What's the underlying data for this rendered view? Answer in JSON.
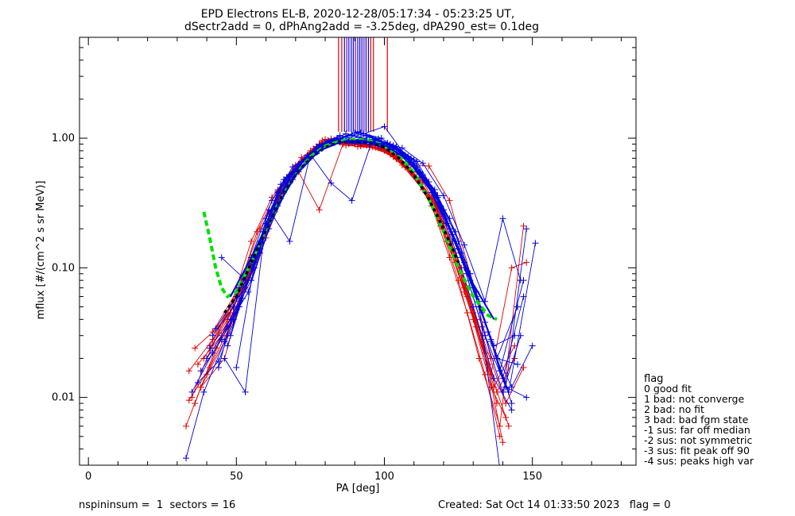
{
  "chart_data": {
    "type": "line",
    "title": "EPD Electrons EL-B, 2020-12-28/05:17:34 - 05:23:25 UT,",
    "subtitle": "dSectr2add = 0, dPhAng2add = -3.25deg, dPA290_est=   0.1deg",
    "xlabel": "PA [deg]",
    "ylabel": "mflux [#/(cm^2 s sr MeV)]",
    "xlim": [
      -3,
      185
    ],
    "ylim": [
      0.003,
      6
    ],
    "yscale": "log",
    "xticks": [
      0,
      50,
      100,
      150
    ],
    "yticks": [
      {
        "v": 0.01,
        "label": "0.01"
      },
      {
        "v": 0.1,
        "label": "0.10"
      },
      {
        "v": 1.0,
        "label": "1.00"
      }
    ],
    "grid": false,
    "colors": {
      "red": "#e00000",
      "blue": "#0000e0",
      "green": "#00e000",
      "black": "#000000",
      "purple": "#8000a0"
    },
    "footer_left": "nspininsum =  1  sectors = 16",
    "footer_right": "Created: Sat Oct 14 01:33:50 2023   flag = 0",
    "legend": {
      "title": "flag",
      "position": "right",
      "items": [
        " 0 good fit",
        " 1 bad: not converge",
        " 2 bad: no fit",
        " 3 bad: bad fgm state",
        "-1 sus: far off median",
        "-2 sus: not symmetric",
        "-3 sus: fit peak off 90",
        "-4 sus: peaks high var"
      ]
    },
    "red_series": [
      {
        "name": "",
        "x": [
          33,
          38,
          47,
          55,
          62,
          68,
          75,
          80,
          85,
          92,
          98,
          104,
          110,
          116,
          122,
          128,
          134,
          139
        ],
        "y": [
          0.006,
          0.012,
          0.03,
          0.1,
          0.28,
          0.5,
          0.8,
          0.98,
          0.93,
          0.9,
          0.87,
          0.74,
          0.52,
          0.3,
          0.12,
          0.045,
          0.015,
          0.005
        ]
      },
      {
        "name": "",
        "x": [
          35,
          40,
          48,
          55,
          62,
          70,
          78,
          85,
          92,
          98,
          105,
          112,
          118,
          124,
          130,
          136,
          141
        ],
        "y": [
          0.01,
          0.02,
          0.05,
          0.16,
          0.35,
          0.62,
          0.9,
          0.95,
          0.88,
          0.84,
          0.68,
          0.45,
          0.25,
          0.11,
          0.04,
          0.012,
          0.007
        ]
      },
      {
        "name": "",
        "x": [
          34,
          42,
          50,
          57,
          64,
          72,
          80,
          88,
          95,
          101,
          108,
          114,
          120,
          126,
          133,
          140
        ],
        "y": [
          0.016,
          0.028,
          0.06,
          0.19,
          0.4,
          0.71,
          0.96,
          0.92,
          0.88,
          0.79,
          0.6,
          0.48,
          0.22,
          0.09,
          0.028,
          0.0045
        ]
      },
      {
        "name": "",
        "x": [
          36,
          44,
          52,
          60,
          67,
          75,
          82,
          90,
          97,
          104,
          110,
          117,
          124,
          131,
          138
        ],
        "y": [
          0.024,
          0.035,
          0.075,
          0.22,
          0.5,
          0.75,
          0.98,
          0.9,
          0.85,
          0.69,
          0.52,
          0.31,
          0.12,
          0.035,
          0.009
        ]
      },
      {
        "name": "",
        "x": [
          38,
          46,
          54,
          61,
          68,
          76,
          83,
          91,
          99,
          106,
          113,
          119,
          125,
          132,
          139,
          147
        ],
        "y": [
          0.012,
          0.02,
          0.09,
          0.25,
          0.52,
          0.83,
          0.96,
          0.86,
          0.84,
          0.62,
          0.4,
          0.21,
          0.08,
          0.02,
          0.006,
          0.21
        ]
      },
      {
        "name": "",
        "x": [
          39,
          47,
          55,
          63,
          70,
          78,
          86,
          93,
          100,
          107,
          114,
          121,
          128,
          136,
          143,
          148
        ],
        "y": [
          0.02,
          0.04,
          0.12,
          0.3,
          0.6,
          0.9,
          0.91,
          0.89,
          0.8,
          0.6,
          0.38,
          0.16,
          0.06,
          0.015,
          0.1,
          0.11
        ]
      },
      {
        "name": "",
        "x": [
          41,
          49,
          57,
          64,
          72,
          79,
          87,
          95,
          102,
          109,
          116,
          123,
          130,
          137,
          144
        ],
        "y": [
          0.025,
          0.05,
          0.14,
          0.36,
          0.66,
          0.96,
          0.88,
          0.85,
          0.75,
          0.55,
          0.34,
          0.14,
          0.045,
          0.012,
          0.025
        ]
      },
      {
        "name": "",
        "x": [
          37,
          45,
          53,
          60,
          66,
          73,
          81,
          88,
          96,
          103,
          111,
          118,
          126,
          133,
          141,
          147
        ],
        "y": [
          0.018,
          0.03,
          0.07,
          0.17,
          0.38,
          0.7,
          0.94,
          0.9,
          0.86,
          0.72,
          0.5,
          0.28,
          0.1,
          0.03,
          0.009,
          0.017
        ]
      },
      {
        "name": "",
        "x": [
          40,
          48,
          56,
          63,
          69,
          77,
          84,
          92,
          99,
          106,
          113,
          120,
          127,
          134
        ],
        "y": [
          0.015,
          0.045,
          0.11,
          0.27,
          0.55,
          0.86,
          0.97,
          0.87,
          0.83,
          0.66,
          0.46,
          0.25,
          0.07,
          0.022
        ]
      },
      {
        "name": "",
        "x": [
          36,
          43,
          51,
          58,
          65,
          72,
          80,
          89,
          97,
          105,
          112,
          119,
          127,
          135,
          142
        ],
        "y": [
          0.009,
          0.024,
          0.055,
          0.13,
          0.34,
          0.6,
          0.88,
          0.93,
          0.89,
          0.7,
          0.47,
          0.23,
          0.065,
          0.018,
          0.006
        ]
      },
      {
        "name": "",
        "x": [
          42,
          50,
          58,
          66,
          74,
          82,
          90,
          97,
          104,
          111,
          117,
          124,
          131,
          138,
          144
        ],
        "y": [
          0.032,
          0.065,
          0.2,
          0.42,
          0.74,
          0.99,
          0.9,
          0.88,
          0.71,
          0.5,
          0.32,
          0.13,
          0.04,
          0.011,
          0.02
        ]
      },
      {
        "name": "",
        "x": [
          34,
          41,
          49,
          56,
          64,
          71,
          78,
          86,
          94,
          101,
          108,
          115,
          122,
          129,
          136
        ],
        "y": [
          0.0095,
          0.017,
          0.04,
          0.1,
          0.3,
          0.55,
          0.28,
          0.9,
          0.88,
          0.8,
          0.63,
          0.61,
          0.33,
          0.09,
          0.02
        ]
      }
    ],
    "blue_series": [
      {
        "name": "",
        "x": [
          33,
          39,
          46,
          53,
          60,
          67,
          74,
          81,
          88,
          95,
          102,
          109,
          116,
          123,
          130,
          137,
          143
        ],
        "y": [
          0.0034,
          0.011,
          0.027,
          0.08,
          0.22,
          0.45,
          0.74,
          0.96,
          0.92,
          0.9,
          0.86,
          0.62,
          0.38,
          0.16,
          0.05,
          0.014,
          0.008
        ]
      },
      {
        "name": "",
        "x": [
          35,
          42,
          49,
          56,
          63,
          70,
          77,
          84,
          91,
          98,
          105,
          112,
          119,
          126,
          133,
          140,
          146
        ],
        "y": [
          0.011,
          0.022,
          0.04,
          0.11,
          0.3,
          0.58,
          0.86,
          1.0,
          0.94,
          0.87,
          0.75,
          0.55,
          0.3,
          0.12,
          0.035,
          0.011,
          0.03
        ]
      },
      {
        "name": "",
        "x": [
          37,
          44,
          51,
          58,
          64,
          71,
          78,
          85,
          92,
          99,
          106,
          113,
          120,
          127,
          134,
          141,
          148
        ],
        "y": [
          0.013,
          0.019,
          0.05,
          0.14,
          0.36,
          0.62,
          0.89,
          1.05,
          0.95,
          0.88,
          0.74,
          0.52,
          0.28,
          0.1,
          0.03,
          0.012,
          0.01
        ]
      },
      {
        "name": "",
        "x": [
          38,
          45,
          52,
          59,
          66,
          73,
          80,
          87,
          94,
          101,
          108,
          115,
          122,
          129,
          136,
          143,
          150
        ],
        "y": [
          0.016,
          0.028,
          0.058,
          0.17,
          0.4,
          0.68,
          0.92,
          1.08,
          0.97,
          0.9,
          0.72,
          0.46,
          0.24,
          0.09,
          0.027,
          0.012,
          0.025
        ]
      },
      {
        "name": "",
        "x": [
          40,
          47,
          54,
          61,
          68,
          75,
          82,
          89,
          96,
          103,
          110,
          117,
          124,
          131,
          138,
          145
        ],
        "y": [
          0.02,
          0.035,
          0.065,
          0.2,
          0.45,
          0.72,
          0.95,
          1.06,
          0.96,
          0.86,
          0.64,
          0.4,
          0.19,
          0.065,
          0.02,
          0.05
        ]
      },
      {
        "name": "",
        "x": [
          41,
          48,
          55,
          62,
          69,
          76,
          83,
          90,
          97,
          104,
          111,
          118,
          125,
          132,
          139,
          147
        ],
        "y": [
          0.024,
          0.04,
          0.08,
          0.24,
          0.48,
          0.75,
          0.97,
          1.1,
          0.98,
          0.82,
          0.6,
          0.36,
          0.16,
          0.055,
          0.016,
          0.08
        ]
      },
      {
        "name": "",
        "x": [
          42,
          49,
          56,
          63,
          70,
          77,
          84,
          91,
          98,
          105,
          112,
          119,
          126,
          133,
          140,
          147
        ],
        "y": [
          0.03,
          0.05,
          0.1,
          0.3,
          0.55,
          0.8,
          0.99,
          1.12,
          0.99,
          0.78,
          0.55,
          0.3,
          0.13,
          0.045,
          0.014,
          0.06
        ]
      },
      {
        "name": "",
        "x": [
          43,
          50,
          57,
          64,
          71,
          78,
          85,
          92,
          99,
          106,
          113,
          120,
          127,
          134,
          141,
          148
        ],
        "y": [
          0.034,
          0.06,
          0.13,
          0.38,
          0.62,
          0.84,
          0.99,
          1.1,
          1.0,
          0.76,
          0.5,
          0.26,
          0.11,
          0.038,
          0.012,
          0.2
        ]
      },
      {
        "name": "",
        "x": [
          44,
          51,
          58,
          65,
          72,
          79,
          86,
          93,
          100,
          107,
          114,
          121,
          128,
          135,
          142,
          151
        ],
        "y": [
          0.017,
          0.07,
          0.16,
          0.44,
          0.65,
          0.87,
          0.98,
          1.08,
          1.23,
          0.74,
          0.46,
          0.22,
          0.09,
          0.032,
          0.011,
          0.155
        ]
      },
      {
        "name": "",
        "x": [
          45,
          52,
          59,
          66,
          73,
          80,
          87,
          94,
          101,
          108,
          115,
          122,
          129,
          136,
          143
        ],
        "y": [
          0.12,
          0.085,
          0.19,
          0.48,
          0.69,
          0.9,
          0.97,
          1.05,
          0.92,
          0.72,
          0.43,
          0.2,
          0.08,
          0.028,
          0.009
        ]
      },
      {
        "name": "",
        "x": [
          46,
          53,
          60,
          67,
          74,
          81,
          88,
          95,
          102,
          109,
          116,
          123,
          130,
          137,
          144
        ],
        "y": [
          0.02,
          0.011,
          0.24,
          0.5,
          0.72,
          0.92,
          0.95,
          1.02,
          0.9,
          0.7,
          0.41,
          0.18,
          0.07,
          0.025,
          0.03
        ]
      },
      {
        "name": "",
        "x": [
          47,
          54,
          61,
          68,
          75,
          82,
          89,
          96,
          103,
          110,
          117,
          124,
          131,
          138,
          145
        ],
        "y": [
          0.025,
          0.08,
          0.28,
          0.16,
          0.75,
          0.45,
          0.33,
          0.98,
          0.88,
          0.68,
          0.38,
          0.16,
          0.06,
          0.02,
          0.018
        ]
      },
      {
        "name": "",
        "x": [
          48,
          55,
          62,
          69,
          76,
          83,
          90,
          97,
          104,
          111,
          118,
          125,
          132,
          139
        ],
        "y": [
          0.03,
          0.12,
          0.33,
          0.6,
          0.78,
          0.94,
          0.93,
          0.96,
          0.86,
          0.66,
          0.35,
          0.14,
          0.05,
          0.0028
        ]
      },
      {
        "name": "",
        "x": [
          50,
          57,
          64,
          71,
          78,
          85,
          92,
          99,
          106,
          113,
          120,
          127,
          134,
          140,
          146
        ],
        "y": [
          0.017,
          0.14,
          0.39,
          0.63,
          0.8,
          0.93,
          0.92,
          0.94,
          0.84,
          0.64,
          0.36,
          0.15,
          0.055,
          0.24,
          0.08
        ]
      }
    ],
    "fit_curves": [
      {
        "name": "",
        "color": "green",
        "x": [
          39,
          41,
          43,
          45,
          47,
          50,
          55,
          60,
          65,
          70,
          75,
          80,
          85,
          90,
          95,
          100,
          105,
          110,
          115,
          120,
          125,
          130,
          135,
          138
        ],
        "y": [
          0.27,
          0.17,
          0.1,
          0.07,
          0.06,
          0.065,
          0.11,
          0.2,
          0.34,
          0.52,
          0.72,
          0.87,
          0.95,
          0.98,
          0.96,
          0.88,
          0.73,
          0.54,
          0.34,
          0.19,
          0.1,
          0.06,
          0.043,
          0.04
        ]
      },
      {
        "name": "",
        "color": "black",
        "x": [
          46,
          50,
          55,
          60,
          65,
          70,
          75,
          80,
          85,
          90,
          95,
          100,
          105,
          110,
          115,
          120,
          125
        ],
        "y": [
          0.045,
          0.06,
          0.11,
          0.2,
          0.34,
          0.52,
          0.7,
          0.85,
          0.93,
          0.95,
          0.93,
          0.85,
          0.7,
          0.52,
          0.34,
          0.2,
          0.11
        ]
      },
      {
        "name": "",
        "color": "blue",
        "x": [
          48,
          55,
          62,
          70,
          78,
          85,
          92,
          100,
          108,
          115,
          122,
          130,
          137
        ],
        "y": [
          0.06,
          0.12,
          0.25,
          0.52,
          0.8,
          0.93,
          0.96,
          0.89,
          0.68,
          0.42,
          0.2,
          0.075,
          0.04
        ]
      }
    ],
    "vertical_lines": [
      {
        "x": 84.5,
        "color": "red"
      },
      {
        "x": 85.6,
        "color": "red"
      },
      {
        "x": 86.5,
        "color": "blue"
      },
      {
        "x": 87.3,
        "color": "purple"
      },
      {
        "x": 88.0,
        "color": "blue"
      },
      {
        "x": 88.8,
        "color": "blue"
      },
      {
        "x": 89.5,
        "color": "blue"
      },
      {
        "x": 90.2,
        "color": "purple"
      },
      {
        "x": 91.0,
        "color": "blue"
      },
      {
        "x": 91.7,
        "color": "blue"
      },
      {
        "x": 92.4,
        "color": "blue"
      },
      {
        "x": 93.1,
        "color": "purple"
      },
      {
        "x": 93.8,
        "color": "blue"
      },
      {
        "x": 94.6,
        "color": "blue"
      },
      {
        "x": 95.4,
        "color": "red"
      },
      {
        "x": 96.3,
        "color": "red"
      },
      {
        "x": 101.0,
        "color": "red"
      }
    ]
  }
}
